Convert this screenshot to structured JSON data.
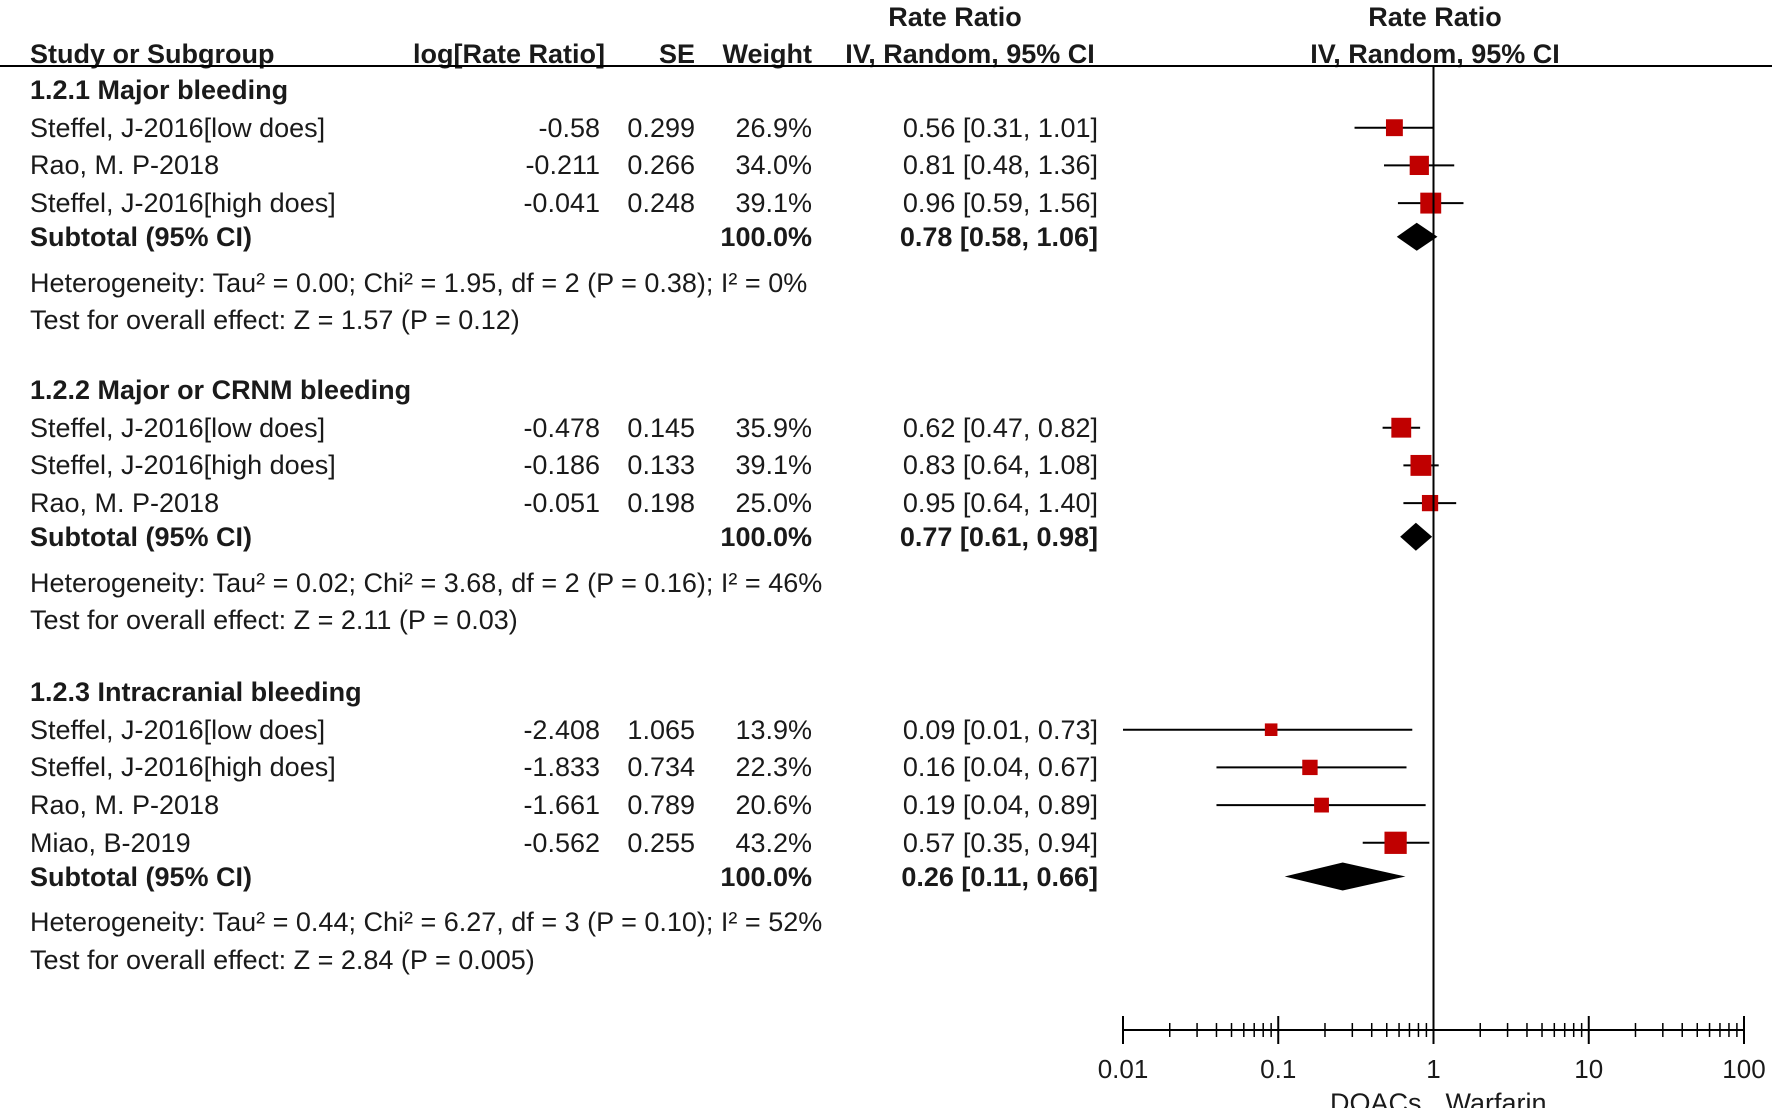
{
  "header": {
    "study_label": "Study or Subgroup",
    "log_label": "log[Rate Ratio]",
    "se_label": "SE",
    "weight_label": "Weight",
    "ratio_title": "Rate Ratio",
    "ratio_method": "IV, Random, 95% CI",
    "plot_title": "Rate Ratio",
    "plot_method": "IV, Random, 95% CI"
  },
  "chart_data": {
    "type": "forest",
    "x_scale": "log",
    "x_ticks": [
      0.01,
      0.1,
      1,
      10,
      100
    ],
    "x_tick_labels": [
      "0.01",
      "0.1",
      "1",
      "10",
      "100"
    ],
    "reference_line": 1,
    "favours_left": "DOACs",
    "favours_right": "Warfarin",
    "subgroups": [
      {
        "title": "1.2.1 Major bleeding",
        "studies": [
          {
            "name": "Steffel, J-2016[low does]",
            "log_rr": "-0.58",
            "se": "0.299",
            "weight": "26.9%",
            "ci_text": "0.56 [0.31, 1.01]",
            "rr": 0.56,
            "lo": 0.31,
            "hi": 1.01
          },
          {
            "name": "Rao, M. P-2018",
            "log_rr": "-0.211",
            "se": "0.266",
            "weight": "34.0%",
            "ci_text": "0.81 [0.48, 1.36]",
            "rr": 0.81,
            "lo": 0.48,
            "hi": 1.36
          },
          {
            "name": "Steffel, J-2016[high does]",
            "log_rr": "-0.041",
            "se": "0.248",
            "weight": "39.1%",
            "ci_text": "0.96 [0.59, 1.56]",
            "rr": 0.96,
            "lo": 0.59,
            "hi": 1.56
          }
        ],
        "subtotal": {
          "label": "Subtotal (95% CI)",
          "weight": "100.0%",
          "ci_text": "0.78 [0.58, 1.06]",
          "rr": 0.78,
          "lo": 0.58,
          "hi": 1.06
        },
        "heterogeneity": "Heterogeneity: Tau² = 0.00; Chi² = 1.95, df = 2 (P = 0.38); I² = 0%",
        "overall": "Test for overall effect: Z = 1.57 (P = 0.12)"
      },
      {
        "title": "1.2.2 Major or CRNM bleeding",
        "studies": [
          {
            "name": "Steffel, J-2016[low does]",
            "log_rr": "-0.478",
            "se": "0.145",
            "weight": "35.9%",
            "ci_text": "0.62 [0.47, 0.82]",
            "rr": 0.62,
            "lo": 0.47,
            "hi": 0.82
          },
          {
            "name": "Steffel, J-2016[high does]",
            "log_rr": "-0.186",
            "se": "0.133",
            "weight": "39.1%",
            "ci_text": "0.83 [0.64, 1.08]",
            "rr": 0.83,
            "lo": 0.64,
            "hi": 1.08
          },
          {
            "name": "Rao, M. P-2018",
            "log_rr": "-0.051",
            "se": "0.198",
            "weight": "25.0%",
            "ci_text": "0.95 [0.64, 1.40]",
            "rr": 0.95,
            "lo": 0.64,
            "hi": 1.4
          }
        ],
        "subtotal": {
          "label": "Subtotal (95% CI)",
          "weight": "100.0%",
          "ci_text": "0.77 [0.61, 0.98]",
          "rr": 0.77,
          "lo": 0.61,
          "hi": 0.98
        },
        "heterogeneity": "Heterogeneity: Tau² = 0.02; Chi² = 3.68, df = 2 (P = 0.16); I² = 46%",
        "overall": "Test for overall effect: Z = 2.11 (P = 0.03)"
      },
      {
        "title": "1.2.3 Intracranial bleeding",
        "studies": [
          {
            "name": "Steffel, J-2016[low does]",
            "log_rr": "-2.408",
            "se": "1.065",
            "weight": "13.9%",
            "ci_text": "0.09 [0.01, 0.73]",
            "rr": 0.09,
            "lo": 0.01,
            "hi": 0.73
          },
          {
            "name": "Steffel, J-2016[high does]",
            "log_rr": "-1.833",
            "se": "0.734",
            "weight": "22.3%",
            "ci_text": "0.16 [0.04, 0.67]",
            "rr": 0.16,
            "lo": 0.04,
            "hi": 0.67
          },
          {
            "name": "Rao, M. P-2018",
            "log_rr": "-1.661",
            "se": "0.789",
            "weight": "20.6%",
            "ci_text": "0.19 [0.04, 0.89]",
            "rr": 0.19,
            "lo": 0.04,
            "hi": 0.89
          },
          {
            "name": "Miao, B-2019",
            "log_rr": "-0.562",
            "se": "0.255",
            "weight": "43.2%",
            "ci_text": "0.57 [0.35, 0.94]",
            "rr": 0.57,
            "lo": 0.35,
            "hi": 0.94
          }
        ],
        "subtotal": {
          "label": "Subtotal (95% CI)",
          "weight": "100.0%",
          "ci_text": "0.26 [0.11, 0.66]",
          "rr": 0.26,
          "lo": 0.11,
          "hi": 0.66
        },
        "heterogeneity": "Heterogeneity: Tau² = 0.44; Chi² = 6.27, df = 3 (P = 0.10); I² = 52%",
        "overall": "Test for overall effect: Z = 2.84 (P = 0.005)"
      }
    ],
    "colors": {
      "marker": "#c00000",
      "line": "#000000"
    }
  }
}
